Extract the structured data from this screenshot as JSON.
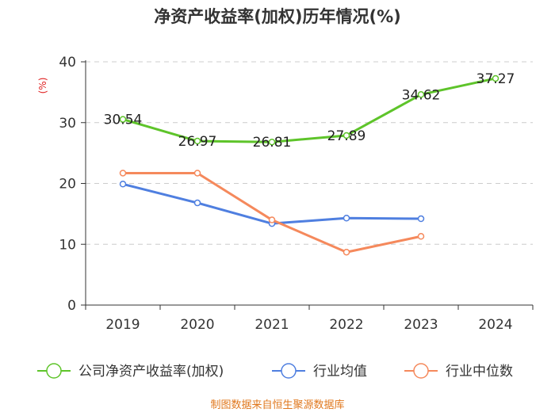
{
  "chart_data": {
    "type": "line",
    "title": "净资产收益率(加权)历年情况(%)",
    "ylabel": "(%)",
    "xlabel": "",
    "categories": [
      "2019",
      "2020",
      "2021",
      "2022",
      "2023",
      "2024"
    ],
    "ylim": [
      0,
      40
    ],
    "yticks": [
      0,
      10,
      20,
      30,
      40
    ],
    "grid": true,
    "legend_position": "bottom",
    "series": [
      {
        "name": "公司净资产收益率(加权)",
        "color": "#5ec42a",
        "values": [
          30.54,
          26.97,
          26.81,
          27.89,
          34.62,
          37.27
        ],
        "labels": [
          "30.54",
          "26.97",
          "26.81",
          "27.89",
          "34.62",
          "37.27"
        ]
      },
      {
        "name": "行业均值",
        "color": "#4f7fe0",
        "values": [
          19.9,
          16.8,
          13.4,
          14.3,
          14.2,
          null
        ]
      },
      {
        "name": "行业中位数",
        "color": "#f5895c",
        "values": [
          21.7,
          21.7,
          14.0,
          8.7,
          11.3,
          null
        ]
      }
    ],
    "source": "制图数据来自恒生聚源数据库"
  }
}
